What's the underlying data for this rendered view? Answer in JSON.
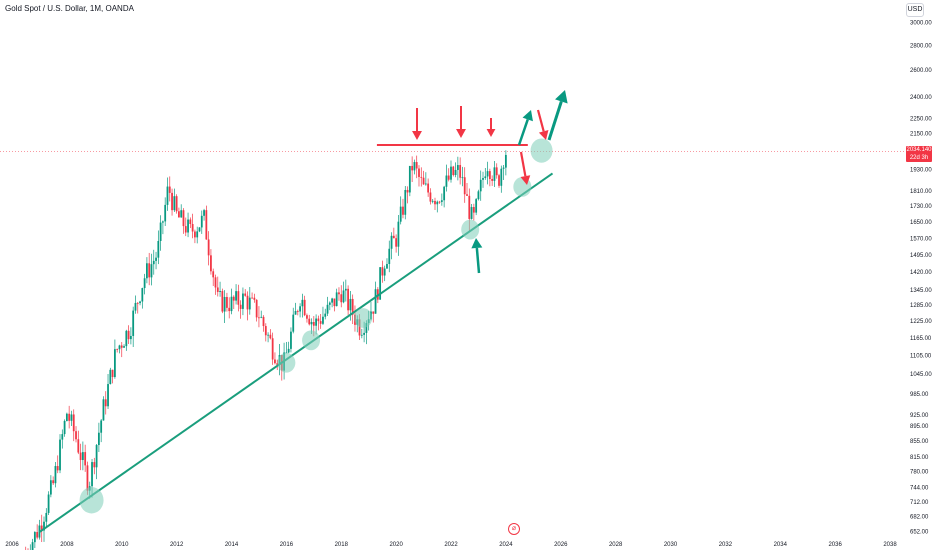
{
  "header": {
    "title": "Gold Spot / U.S. Dollar, 1M, OANDA"
  },
  "price_scale": {
    "currency": "USD"
  },
  "last_price": {
    "value": "2034.140",
    "countdown": "22d 3h"
  },
  "colors": {
    "up": "#089981",
    "down": "#f23645",
    "trendline": "#1a9e7d",
    "resistance": "#f23645",
    "circle_fill": "#7ecdb8",
    "background": "#ffffff"
  },
  "chart_data": {
    "type": "candlestick",
    "title": "Gold Spot / U.S. Dollar, 1M, OANDA",
    "y_scale": "log",
    "xlim": [
      2006,
      2038
    ],
    "ylim": [
      652,
      3000
    ],
    "y_ticks": [
      "3000.00",
      "2800.00",
      "2600.00",
      "2400.00",
      "2250.00",
      "2150.00",
      "1930.00",
      "1810.00",
      "1730.00",
      "1650.00",
      "1570.00",
      "1495.00",
      "1420.00",
      "1345.00",
      "1285.00",
      "1225.00",
      "1165.00",
      "1105.00",
      "1045.00",
      "985.00",
      "925.00",
      "895.00",
      "855.00",
      "815.00",
      "780.00",
      "744.00",
      "712.00",
      "682.00",
      "652.00"
    ],
    "x_ticks": [
      "2006",
      "2008",
      "2010",
      "2012",
      "2014",
      "2016",
      "2018",
      "2020",
      "2022",
      "2024",
      "2026",
      "2028",
      "2030",
      "2032",
      "2034",
      "2036",
      "2038"
    ],
    "series": [
      {
        "x": [
          2006.5,
          2007.0,
          2007.5,
          2008.0,
          2008.3,
          2008.8,
          2009.3,
          2009.8,
          2010.3,
          2010.8,
          2011.3,
          2011.7,
          2012.0,
          2012.5,
          2013.0,
          2013.5,
          2014.0,
          2014.5,
          2015.0,
          2015.5,
          2015.9,
          2016.5,
          2017.0,
          2017.5,
          2018.0,
          2018.7,
          2019.2,
          2019.6,
          2020.0,
          2020.6,
          2021.0,
          2021.5,
          2022.0,
          2022.3,
          2022.8,
          2023.3,
          2023.7,
          2023.95
        ],
        "close": [
          610,
          660,
          750,
          930,
          870,
          750,
          930,
          1120,
          1200,
          1390,
          1500,
          1830,
          1680,
          1600,
          1660,
          1300,
          1290,
          1310,
          1250,
          1130,
          1070,
          1320,
          1210,
          1260,
          1340,
          1200,
          1290,
          1480,
          1570,
          1960,
          1820,
          1770,
          1890,
          1920,
          1640,
          1980,
          1850,
          2034
        ]
      }
    ],
    "annotations": {
      "trendline": {
        "from": [
          2007.0,
          650
        ],
        "to": [
          2025.7,
          1905
        ]
      },
      "resistance": {
        "from": [
          2019.3,
          2075
        ],
        "to": [
          2024.8,
          2075
        ]
      },
      "touch_points": [
        [
          2008.9,
          715
        ],
        [
          2016.0,
          1080
        ],
        [
          2016.9,
          1155
        ],
        [
          2018.8,
          1235
        ],
        [
          2022.7,
          1610
        ],
        [
          2024.6,
          1830
        ],
        [
          2025.3,
          2040
        ]
      ]
    }
  }
}
